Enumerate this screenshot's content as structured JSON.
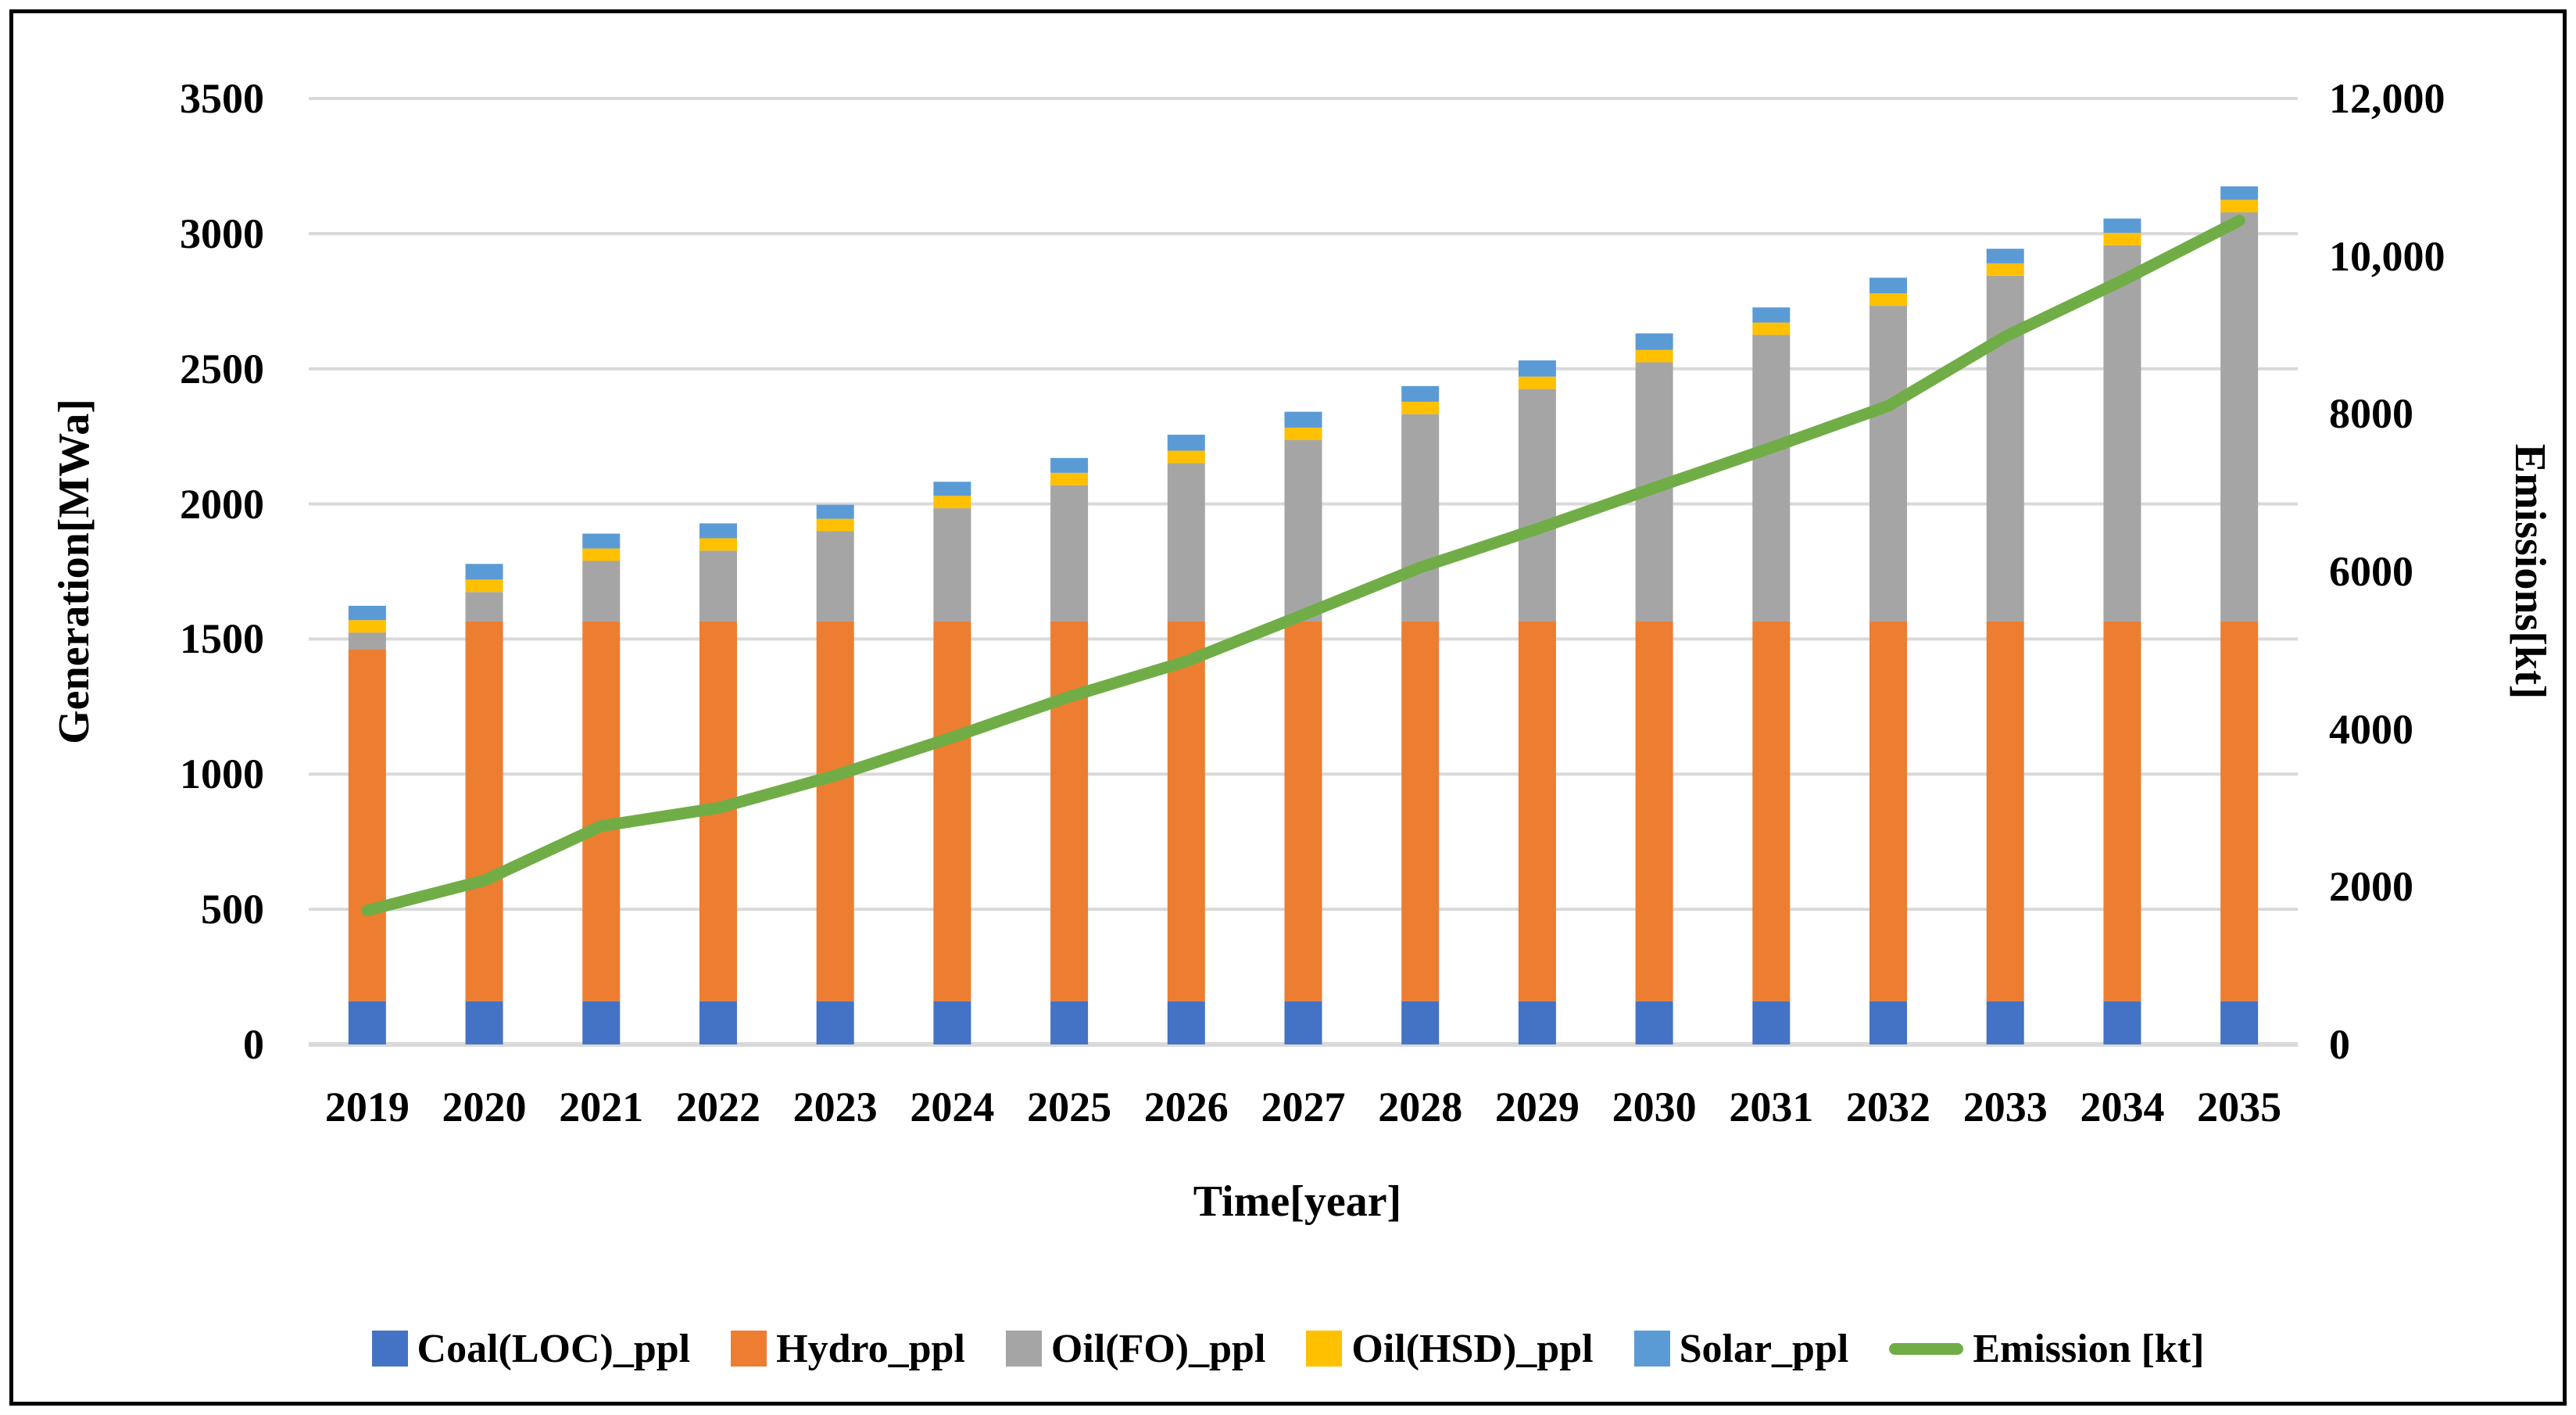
{
  "chart_data": {
    "type": "bar",
    "subtype": "stacked-bar-with-line-combo",
    "title": "",
    "categories": [
      "2019",
      "2020",
      "2021",
      "2022",
      "2023",
      "2024",
      "2025",
      "2026",
      "2027",
      "2028",
      "2029",
      "2030",
      "2031",
      "2032",
      "2033",
      "2034",
      "2035"
    ],
    "series": [
      {
        "name": "Coal(LOC)_ppl",
        "type": "bar",
        "axis": "left",
        "color": "#4472C4",
        "values": [
          160,
          160,
          160,
          160,
          160,
          160,
          160,
          160,
          160,
          160,
          160,
          160,
          160,
          160,
          160,
          160,
          160
        ]
      },
      {
        "name": "Hydro_ppl",
        "type": "bar",
        "axis": "left",
        "color": "#ED7D31",
        "values": [
          1302,
          1405,
          1405,
          1405,
          1405,
          1405,
          1405,
          1405,
          1405,
          1405,
          1405,
          1405,
          1405,
          1405,
          1405,
          1405,
          1405
        ]
      },
      {
        "name": "Oil(FO)_ppl",
        "type": "bar",
        "axis": "left",
        "color": "#A5A5A5",
        "values": [
          62,
          109,
          224,
          262,
          334,
          419,
          504,
          586,
          671,
          767,
          860,
          959,
          1060,
          1168,
          1279,
          1392,
          1514
        ]
      },
      {
        "name": "Oil(HSD)_ppl",
        "type": "bar",
        "axis": "left",
        "color": "#FFC000",
        "values": [
          46,
          46,
          46,
          46,
          46,
          46,
          46,
          46,
          46,
          46,
          46,
          46,
          46,
          46,
          46,
          46,
          46
        ]
      },
      {
        "name": "Solar_ppl",
        "type": "bar",
        "axis": "left",
        "color": "#5B9BD5",
        "values": [
          53,
          58,
          55,
          55,
          52,
          52,
          55,
          59,
          59,
          58,
          60,
          61,
          56,
          58,
          54,
          53,
          50
        ]
      },
      {
        "name": "Emission [kt]",
        "type": "line",
        "axis": "right",
        "color": "#70AD47",
        "values": [
          1700,
          2080,
          2770,
          3000,
          3410,
          3895,
          4410,
          4860,
          5450,
          6050,
          6540,
          7060,
          7570,
          8100,
          8980,
          9690,
          10450
        ]
      }
    ],
    "left_axis": {
      "title": "Generation[MWa]",
      "min": 0,
      "max": 3500,
      "tick_step": 500,
      "tick_labels": [
        "0",
        "500",
        "1000",
        "1500",
        "2000",
        "2500",
        "3000",
        "3500"
      ]
    },
    "right_axis": {
      "title": "Emissions[kt]",
      "min": 0,
      "max": 12000,
      "tick_step": 2000,
      "tick_labels": [
        "0",
        "2000",
        "4000",
        "6000",
        "8000",
        "10,000",
        "12,000"
      ]
    },
    "x_axis": {
      "title": "Time[year]"
    },
    "grid": true,
    "legend_position": "bottom"
  },
  "styles": {
    "background": "#FFFFFF",
    "border_color": "#000000",
    "grid_color": "#D9D9D9",
    "axis_line_color": "#D9D9D9",
    "text_color": "#000000"
  }
}
